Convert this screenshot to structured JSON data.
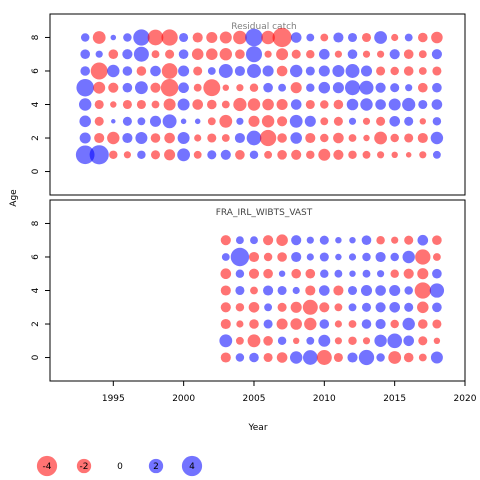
{
  "colors": {
    "positive": "#0000FF",
    "negative": "#FF0000",
    "bubble_opacity": 0.55
  },
  "chart_data": {
    "type": "scatter",
    "subtype": "bubble",
    "xlabel": "Year",
    "ylabel": "Age",
    "xlim": [
      1990.5,
      2020
    ],
    "x_ticks": [
      1995,
      2000,
      2005,
      2010,
      2015,
      2020
    ],
    "y_ticks": [
      0,
      2,
      4,
      6,
      8
    ],
    "panels": [
      {
        "title": "Residual catch",
        "ylim": [
          -1.4,
          9.4
        ],
        "years": [
          1993,
          1994,
          1995,
          1996,
          1997,
          1998,
          1999,
          2000,
          2001,
          2002,
          2003,
          2004,
          2005,
          2006,
          2007,
          2008,
          2009,
          2010,
          2011,
          2012,
          2013,
          2014,
          2015,
          2016,
          2017,
          2018
        ],
        "ages": [
          1,
          2,
          3,
          4,
          5,
          6,
          7,
          8
        ],
        "residuals": [
          [
            3.4,
            3.6,
            -0.7,
            -0.5,
            0.7,
            -0.8,
            -1.2,
            1.6,
            -0.6,
            0.8,
            1.0,
            -0.9,
            0.7,
            -0.6,
            -0.9,
            -1.0,
            -0.7,
            -1.4,
            -1.0,
            -0.7,
            -0.6,
            -0.5,
            -0.4,
            -0.3,
            -0.5,
            0.6
          ],
          [
            1.2,
            -1.0,
            -1.5,
            1.0,
            1.4,
            -0.9,
            -1.1,
            1.4,
            -0.5,
            -0.8,
            -0.6,
            1.0,
            2.1,
            -2.6,
            -0.9,
            1.3,
            -1.0,
            -0.7,
            -1.1,
            -0.6,
            -0.4,
            -1.6,
            -0.7,
            -0.8,
            -1.0,
            1.5
          ],
          [
            1.3,
            -0.8,
            0.2,
            0.8,
            0.6,
            1.2,
            1.9,
            0.3,
            0.3,
            -0.6,
            -1.6,
            0.5,
            -1.2,
            -1.5,
            -1.0,
            1.6,
            1.2,
            -0.6,
            -0.8,
            0.5,
            -0.5,
            -0.8,
            1.1,
            0.8,
            -0.4,
            0.7
          ],
          [
            1.5,
            -0.8,
            -0.4,
            -0.8,
            -0.8,
            -0.6,
            -1.4,
            1.4,
            -1.1,
            -0.9,
            -0.6,
            -1.7,
            -1.5,
            -1.3,
            -1.2,
            1.1,
            -0.8,
            -0.7,
            -0.9,
            1.3,
            1.5,
            1.1,
            1.4,
            1.7,
            0.8,
            1.1
          ],
          [
            3.0,
            -1.4,
            -1.0,
            0.9,
            1.6,
            -1.0,
            -3.0,
            1.1,
            -0.6,
            -2.8,
            -0.4,
            -0.5,
            -0.7,
            0.9,
            0.6,
            -1.2,
            0.7,
            1.3,
            1.2,
            2.2,
            1.9,
            1.0,
            0.8,
            0.5,
            -0.9,
            0.9
          ],
          [
            0.9,
            -2.8,
            1.5,
            0.9,
            -0.9,
            1.1,
            -2.4,
            1.2,
            -0.8,
            0.6,
            1.9,
            1.0,
            1.9,
            1.2,
            -1.1,
            1.5,
            0.8,
            1.2,
            1.4,
            1.9,
            1.2,
            -0.8,
            -0.7,
            -0.9,
            -0.6,
            -0.8
          ],
          [
            0.9,
            0.5,
            -0.9,
            1.0,
            2.2,
            -0.6,
            -0.8,
            0.9,
            -1.3,
            -1.3,
            -1.5,
            -0.9,
            2.5,
            -0.5,
            -1.4,
            -0.8,
            -0.7,
            1.1,
            -0.5,
            0.9,
            -0.5,
            -0.5,
            1.0,
            -0.9,
            -0.6,
            1.0
          ],
          [
            0.7,
            -1.6,
            0.3,
            0.7,
            2.6,
            -2.4,
            -2.6,
            0.8,
            -1.0,
            -1.2,
            -1.4,
            -1.8,
            3.0,
            -1.8,
            -3.6,
            1.1,
            0.6,
            -0.6,
            1.0,
            0.8,
            -0.8,
            1.6,
            -0.5,
            0.6,
            -0.9,
            -1.3
          ]
        ]
      },
      {
        "title": "FRA_IRL_WIBTS_VAST",
        "ylim": [
          -1.4,
          9.4
        ],
        "years": [
          2003,
          2004,
          2005,
          2006,
          2007,
          2008,
          2009,
          2010,
          2011,
          2012,
          2013,
          2014,
          2015,
          2016,
          2017,
          2018
        ],
        "ages": [
          0,
          1,
          2,
          3,
          4,
          5,
          6,
          7
        ],
        "residuals": [
          [
            -1.0,
            0.7,
            0.9,
            -0.8,
            -1.1,
            1.5,
            2.1,
            -2.2,
            -0.8,
            1.0,
            2.3,
            0.7,
            -1.6,
            -0.9,
            -0.6,
            1.4
          ],
          [
            1.6,
            -0.6,
            -1.6,
            -0.9,
            0.7,
            -0.4,
            0.6,
            1.4,
            -0.5,
            -0.7,
            -0.5,
            1.5,
            2.1,
            1.1,
            -0.8,
            -0.4
          ],
          [
            -1.0,
            -0.5,
            -0.9,
            0.8,
            -1.2,
            -1.3,
            -1.5,
            0.9,
            -0.5,
            -0.6,
            0.9,
            1.0,
            -0.7,
            1.5,
            -0.9,
            -0.8
          ],
          [
            -1.0,
            -0.7,
            -1.1,
            0.6,
            -0.8,
            -1.2,
            -2.2,
            -1.0,
            -0.6,
            0.6,
            0.8,
            1.0,
            1.1,
            0.8,
            -1.3,
            0.9
          ],
          [
            -1.0,
            0.8,
            -0.6,
            1.0,
            0.8,
            0.5,
            -1.0,
            1.1,
            -1.0,
            0.8,
            1.2,
            1.1,
            1.2,
            0.7,
            -2.6,
            2.0
          ],
          [
            -1.1,
            0.7,
            -1.0,
            -0.9,
            0.4,
            -0.9,
            -0.9,
            0.7,
            0.6,
            0.4,
            0.6,
            0.5,
            -0.7,
            -1.0,
            -1.2,
            0.9
          ],
          [
            0.6,
            3.3,
            -1.0,
            -0.7,
            -0.9,
            1.0,
            0.5,
            0.8,
            0.4,
            0.5,
            0.7,
            1.0,
            0.7,
            1.5,
            -2.3,
            -0.6
          ],
          [
            -1.0,
            0.6,
            0.6,
            -1.0,
            -1.3,
            1.0,
            0.5,
            0.8,
            0.4,
            0.4,
            0.9,
            -0.7,
            -0.5,
            -0.8,
            1.1,
            -0.9
          ]
        ]
      }
    ],
    "legend": {
      "placement": "bottom-left",
      "values": [
        -4,
        -2,
        0,
        2,
        4
      ],
      "labels": [
        "-4",
        "-2",
        "0",
        "2",
        "4"
      ]
    }
  }
}
